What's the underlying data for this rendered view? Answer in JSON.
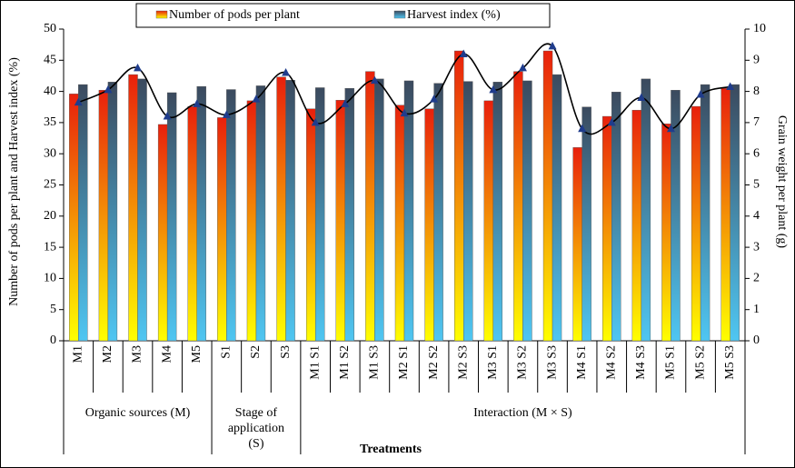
{
  "chart_data": {
    "type": "bar",
    "y_label": "Number of pods per plant and Harvest index (%)",
    "y2_label": "Grain weight per plant (g)",
    "x_label": "Treatments",
    "categories": [
      "M1",
      "M2",
      "M3",
      "M4",
      "M5",
      "S1",
      "S2",
      "S3",
      "M1 S1",
      "M1 S2",
      "M1 S3",
      "M2 S1",
      "M2 S2",
      "M2 S3",
      "M3 S1",
      "M3 S2",
      "M3 S3",
      "M4 S1",
      "M4 S2",
      "M4 S3",
      "M5 S1",
      "M5 S2",
      "M5 S3"
    ],
    "groups": [
      {
        "label": "Organic sources (M)",
        "span": 5
      },
      {
        "label": "Stage of application (S)",
        "span": 3
      },
      {
        "label": "Interaction (M × S)",
        "span": 15
      }
    ],
    "series": [
      {
        "name": "Number of pods per plant",
        "colors": [
          "#e8200c",
          "#ffff00"
        ],
        "values": [
          39.6,
          40.2,
          42.7,
          34.7,
          37.6,
          35.8,
          38.5,
          42.3,
          37.2,
          38.6,
          43.2,
          37.8,
          37.2,
          46.5,
          38.5,
          43.2,
          46.5,
          31.0,
          36.0,
          37.0,
          34.8,
          37.6,
          40.5
        ]
      },
      {
        "name": "Harvest index (%)",
        "colors": [
          "#3b4a5e",
          "#4fc6f2"
        ],
        "values": [
          41.1,
          41.5,
          42.0,
          39.8,
          40.8,
          40.3,
          40.9,
          41.8,
          40.6,
          40.5,
          42.0,
          41.7,
          41.3,
          41.6,
          41.5,
          41.7,
          42.7,
          37.5,
          39.9,
          42.0,
          40.2,
          41.1,
          41.1
        ]
      },
      {
        "type": "line",
        "axis": "y2",
        "color": "#000000",
        "marker_color": "#1f3c8c",
        "values": [
          7.65,
          8.05,
          8.75,
          7.2,
          7.6,
          7.25,
          7.75,
          8.6,
          7.0,
          7.6,
          8.35,
          7.3,
          7.75,
          9.2,
          8.05,
          8.75,
          9.45,
          6.8,
          7.0,
          7.8,
          6.8,
          7.9,
          8.15
        ]
      }
    ],
    "ylim": [
      0,
      50
    ],
    "yticks": [
      0,
      5,
      10,
      15,
      20,
      25,
      30,
      35,
      40,
      45,
      50
    ],
    "y2lim": [
      0,
      10
    ],
    "y2ticks": [
      0,
      1,
      2,
      3,
      4,
      5,
      6,
      7,
      8,
      9,
      10
    ],
    "grid": false
  }
}
